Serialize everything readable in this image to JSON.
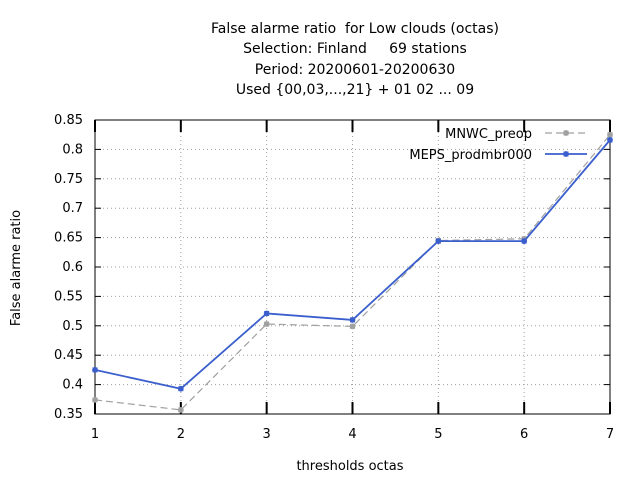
{
  "chart_data": {
    "type": "line",
    "title_lines": [
      "False alarme ratio  for Low clouds (octas)",
      "Selection: Finland     69 stations",
      "Period: 20200601-20200630",
      "Used {00,03,...,21} + 01 02 ... 09"
    ],
    "xlabel": "thresholds octas",
    "ylabel": "False alarme ratio",
    "x": [
      1,
      2,
      3,
      4,
      5,
      6,
      7
    ],
    "xlim": [
      1,
      7
    ],
    "ylim": [
      0.35,
      0.85
    ],
    "yticks": [
      "0.35",
      "0.4",
      "0.45",
      "0.5",
      "0.55",
      "0.6",
      "0.65",
      "0.7",
      "0.75",
      "0.8",
      "0.85"
    ],
    "xticks": [
      "1",
      "2",
      "3",
      "4",
      "5",
      "6",
      "7"
    ],
    "grid": true,
    "legend_position": "top-right",
    "series": [
      {
        "name": "MNWC_preop",
        "color": "#a0a0a0",
        "style": "dashed",
        "values": [
          0.374,
          0.357,
          0.503,
          0.499,
          0.645,
          0.648,
          0.825
        ]
      },
      {
        "name": "MEPS_prodmbr000",
        "color": "#3a5fcd",
        "style": "solid",
        "values": [
          0.425,
          0.393,
          0.521,
          0.51,
          0.644,
          0.644,
          0.816
        ]
      }
    ]
  }
}
